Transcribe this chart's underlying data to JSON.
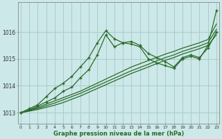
{
  "xlabel": "Graphe pression niveau de la mer (hPa)",
  "hours": [
    0,
    1,
    2,
    3,
    4,
    5,
    6,
    7,
    8,
    9,
    10,
    11,
    12,
    13,
    14,
    15,
    16,
    17,
    18,
    19,
    20,
    21,
    22,
    23
  ],
  "line_sharp": [
    1013.0,
    1013.15,
    1013.3,
    1013.6,
    1013.9,
    1014.1,
    1014.35,
    1014.7,
    1015.05,
    1015.6,
    1016.05,
    1015.75,
    1015.6,
    1015.55,
    1015.45,
    1015.0,
    1014.85,
    1014.75,
    1014.65,
    1015.0,
    1015.1,
    1015.0,
    1015.5,
    1016.8
  ],
  "line_smooth": [
    1013.0,
    1013.1,
    1013.25,
    1013.4,
    1013.55,
    1013.8,
    1013.95,
    1014.3,
    1014.6,
    1015.15,
    1015.9,
    1015.45,
    1015.6,
    1015.65,
    1015.5,
    1015.2,
    1015.05,
    1014.9,
    1014.7,
    1015.05,
    1015.15,
    1015.05,
    1015.4,
    1016.0
  ],
  "line_diag1": [
    1013.0,
    1013.1,
    1013.2,
    1013.32,
    1013.44,
    1013.56,
    1013.68,
    1013.8,
    1013.95,
    1014.1,
    1014.25,
    1014.4,
    1014.55,
    1014.7,
    1014.82,
    1014.94,
    1015.06,
    1015.18,
    1015.28,
    1015.4,
    1015.5,
    1015.6,
    1015.72,
    1016.3
  ],
  "line_diag2": [
    1013.0,
    1013.08,
    1013.16,
    1013.26,
    1013.36,
    1013.48,
    1013.6,
    1013.72,
    1013.86,
    1014.0,
    1014.14,
    1014.28,
    1014.42,
    1014.56,
    1014.68,
    1014.8,
    1014.93,
    1015.05,
    1015.15,
    1015.28,
    1015.38,
    1015.48,
    1015.6,
    1016.1
  ],
  "line_diag3": [
    1013.0,
    1013.06,
    1013.12,
    1013.2,
    1013.28,
    1013.38,
    1013.5,
    1013.62,
    1013.76,
    1013.9,
    1014.04,
    1014.18,
    1014.32,
    1014.46,
    1014.58,
    1014.7,
    1014.83,
    1014.95,
    1015.05,
    1015.18,
    1015.28,
    1015.38,
    1015.5,
    1015.9
  ],
  "line_color": "#2a6a2a",
  "bg_color": "#cce8e8",
  "grid_color": "#aacccc",
  "ylim": [
    1012.6,
    1017.1
  ],
  "yticks": [
    1013,
    1014,
    1015,
    1016
  ],
  "marker": "+",
  "marker_size": 3.5,
  "linewidth": 0.9
}
